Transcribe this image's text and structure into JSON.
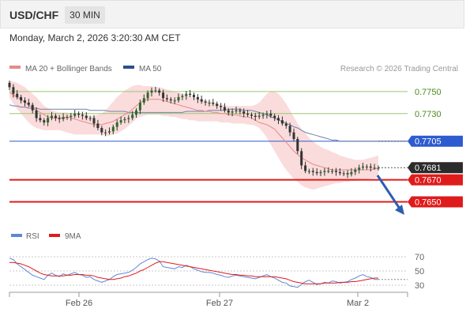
{
  "header": {
    "pair": "USD/CHF",
    "timeframe": "30 MIN"
  },
  "timestamp": "Monday, March 2, 2026 3:20:30 AM CET",
  "legend": {
    "bb_label": "MA 20 + Bollinger Bands",
    "ma50_label": "MA 50",
    "credit": "Research © 2026 Trading Central"
  },
  "rsi_legend": {
    "rsi_label": "RSI",
    "ma9_label": "9MA"
  },
  "colors": {
    "resistance": "#9dc870",
    "resistance_text": "#4a8a1f",
    "pivot": "#2d5bd0",
    "support": "#e01b1b",
    "current": "#2b2b2b",
    "candle": "#2a6a24",
    "bollinger": "#f8d0d0",
    "ma20": "#e68a8a",
    "ma50": "#6f82aa",
    "rsi": "#5f86d8",
    "rsi_ma": "#e01b1b",
    "arrow": "#2a5fae"
  },
  "chart_data": {
    "type": "candlestick",
    "price_axis": {
      "min": 0.7636,
      "max": 0.7765
    },
    "x_ticks": [
      "Feb 26",
      "Feb 27",
      "Mar 2"
    ],
    "levels": [
      {
        "label": "0.7750",
        "value": 0.775,
        "kind": "resistance"
      },
      {
        "label": "0.7730",
        "value": 0.773,
        "kind": "resistance"
      },
      {
        "label": "0.7705",
        "value": 0.7705,
        "kind": "pivot"
      },
      {
        "label": "0.7681",
        "value": 0.7681,
        "kind": "current"
      },
      {
        "label": "0.7670",
        "value": 0.767,
        "kind": "support"
      },
      {
        "label": "0.7650",
        "value": 0.765,
        "kind": "support"
      }
    ],
    "close": [
      0.7754,
      0.7748,
      0.7745,
      0.7742,
      0.774,
      0.7738,
      0.7733,
      0.7726,
      0.7724,
      0.7722,
      0.7726,
      0.7728,
      0.7726,
      0.7725,
      0.7727,
      0.7727,
      0.7728,
      0.773,
      0.7729,
      0.7728,
      0.7726,
      0.7726,
      0.7721,
      0.7717,
      0.7713,
      0.7713,
      0.7714,
      0.7718,
      0.7722,
      0.7724,
      0.7725,
      0.7726,
      0.7729,
      0.7733,
      0.774,
      0.7744,
      0.7749,
      0.7751,
      0.7751,
      0.7749,
      0.7744,
      0.7743,
      0.7742,
      0.7742,
      0.7745,
      0.7746,
      0.7748,
      0.7747,
      0.7745,
      0.7743,
      0.7741,
      0.774,
      0.774,
      0.7739,
      0.7737,
      0.7736,
      0.7733,
      0.7731,
      0.7732,
      0.7733,
      0.7732,
      0.773,
      0.7729,
      0.7728,
      0.7727,
      0.7728,
      0.7729,
      0.773,
      0.7728,
      0.7726,
      0.7724,
      0.7721,
      0.7719,
      0.7713,
      0.7707,
      0.7696,
      0.7683,
      0.7678,
      0.7678,
      0.7677,
      0.7676,
      0.7677,
      0.7678,
      0.7678,
      0.7678,
      0.7677,
      0.7676,
      0.7676,
      0.7675,
      0.7677,
      0.7679,
      0.7681,
      0.7682,
      0.7682,
      0.7681,
      0.7681,
      0.7681
    ],
    "ma20": [
      0.7749,
      0.7747,
      0.7745,
      0.7743,
      0.774,
      0.7738,
      0.7735,
      0.7733,
      0.7731,
      0.7729,
      0.7727,
      0.7726,
      0.7726,
      0.7726,
      0.7726,
      0.7727,
      0.7726,
      0.7725,
      0.7724,
      0.7723,
      0.7722,
      0.7721,
      0.772,
      0.772,
      0.772,
      0.7721,
      0.7722,
      0.7723,
      0.7725,
      0.7727,
      0.7729,
      0.7731,
      0.7734,
      0.7737,
      0.774,
      0.7742,
      0.7743,
      0.7743,
      0.7743,
      0.7743,
      0.7742,
      0.7741,
      0.774,
      0.7739,
      0.7738,
      0.7737,
      0.7736,
      0.7735,
      0.7734,
      0.7733,
      0.7733,
      0.7732,
      0.7732,
      0.7731,
      0.7731,
      0.773,
      0.773,
      0.7729,
      0.7729,
      0.7729,
      0.7728,
      0.7727,
      0.7727,
      0.7726,
      0.7724,
      0.7722,
      0.7721,
      0.772,
      0.7718,
      0.7716,
      0.7712,
      0.7708,
      0.7704,
      0.77,
      0.7696,
      0.7693,
      0.769,
      0.7688,
      0.7686,
      0.7684,
      0.7683,
      0.7682,
      0.7681,
      0.768,
      0.7679,
      0.7679,
      0.7679,
      0.7679,
      0.7679,
      0.7679,
      0.7679,
      0.7679,
      0.7679,
      0.7679,
      0.7679,
      0.768,
      0.768
    ],
    "ma50": [
      0.7738,
      0.7737,
      0.7737,
      0.7736,
      0.7736,
      0.7735,
      0.7735,
      0.7735,
      0.7734,
      0.7734,
      0.7734,
      0.7734,
      0.7734,
      0.7734,
      0.7734,
      0.7734,
      0.7734,
      0.7734,
      0.7734,
      0.7734,
      0.7734,
      0.7733,
      0.7733,
      0.7733,
      0.7733,
      0.7733,
      0.7732,
      0.7732,
      0.7732,
      0.7732,
      0.7732,
      0.7731,
      0.7731,
      0.7731,
      0.7731,
      0.7731,
      0.7731,
      0.7731,
      0.7731,
      0.7731,
      0.7731,
      0.7731,
      0.7731,
      0.7731,
      0.7731,
      0.7731,
      0.7732,
      0.7732,
      0.7732,
      0.7732,
      0.7732,
      0.7732,
      0.7733,
      0.7733,
      0.7733,
      0.7733,
      0.7733,
      0.7734,
      0.7734,
      0.7734,
      0.7734,
      0.7733,
      0.7733,
      0.7733,
      0.7732,
      0.7731,
      0.773,
      0.7729,
      0.7727,
      0.7726,
      0.7724,
      0.7723,
      0.7721,
      0.772,
      0.7718,
      0.7717,
      0.7715,
      0.7713,
      0.7712,
      0.7711,
      0.771,
      0.7709,
      0.7708,
      0.7707,
      0.7706,
      0.7706,
      0.7705,
      0.7705,
      0.7705,
      0.7705,
      0.7705,
      0.7705,
      0.7705,
      0.7705,
      0.7705,
      0.7705,
      0.7705
    ],
    "bb_upper": [
      0.776,
      0.7759,
      0.7758,
      0.7756,
      0.7754,
      0.7751,
      0.7748,
      0.7745,
      0.7741,
      0.7737,
      0.7735,
      0.7733,
      0.7732,
      0.7731,
      0.7731,
      0.7731,
      0.773,
      0.773,
      0.773,
      0.7729,
      0.7729,
      0.7728,
      0.7728,
      0.7729,
      0.773,
      0.7733,
      0.7737,
      0.7741,
      0.7745,
      0.7748,
      0.7751,
      0.7753,
      0.7755,
      0.7756,
      0.7756,
      0.7755,
      0.7755,
      0.7755,
      0.7754,
      0.7754,
      0.7753,
      0.7752,
      0.7751,
      0.775,
      0.7749,
      0.7748,
      0.7747,
      0.7746,
      0.7745,
      0.7744,
      0.7743,
      0.7742,
      0.7741,
      0.774,
      0.7739,
      0.7738,
      0.7738,
      0.7737,
      0.7737,
      0.7737,
      0.7737,
      0.7737,
      0.7737,
      0.7737,
      0.7738,
      0.774,
      0.7744,
      0.7748,
      0.775,
      0.775,
      0.7748,
      0.7744,
      0.7739,
      0.7733,
      0.7727,
      0.7721,
      0.7716,
      0.7712,
      0.7708,
      0.7705,
      0.7702,
      0.77,
      0.7698,
      0.7697,
      0.7695,
      0.7694,
      0.7692,
      0.7691,
      0.769,
      0.7689,
      0.7688,
      0.7688,
      0.7688,
      0.7689,
      0.769,
      0.7691,
      0.7692
    ],
    "bb_lower": [
      0.7745,
      0.7739,
      0.7734,
      0.773,
      0.7726,
      0.7722,
      0.7719,
      0.7717,
      0.7716,
      0.7715,
      0.7715,
      0.7715,
      0.7715,
      0.7715,
      0.7714,
      0.7713,
      0.7712,
      0.7711,
      0.7711,
      0.7711,
      0.7711,
      0.7711,
      0.7711,
      0.7711,
      0.7711,
      0.771,
      0.771,
      0.7711,
      0.7712,
      0.7714,
      0.7716,
      0.7719,
      0.7722,
      0.7725,
      0.7727,
      0.7728,
      0.7729,
      0.7729,
      0.7729,
      0.7729,
      0.7728,
      0.7728,
      0.7727,
      0.7727,
      0.7726,
      0.7725,
      0.7725,
      0.7724,
      0.7724,
      0.7723,
      0.7723,
      0.7723,
      0.7723,
      0.7723,
      0.7723,
      0.7722,
      0.7722,
      0.7722,
      0.7721,
      0.7721,
      0.7721,
      0.7721,
      0.772,
      0.772,
      0.7719,
      0.7717,
      0.7713,
      0.7708,
      0.7702,
      0.7696,
      0.769,
      0.7684,
      0.7679,
      0.7675,
      0.7671,
      0.7668,
      0.7665,
      0.7663,
      0.7662,
      0.7661,
      0.7662,
      0.7663,
      0.7664,
      0.7665,
      0.7666,
      0.7667,
      0.7667,
      0.7668,
      0.7668,
      0.7669,
      0.7669,
      0.767,
      0.767,
      0.7671,
      0.7671,
      0.7672,
      0.7672
    ],
    "rsi_axis": {
      "min": 20,
      "max": 80,
      "ticks": [
        70,
        50,
        30
      ]
    },
    "rsi": [
      68,
      66,
      60,
      56,
      52,
      48,
      44,
      42,
      40,
      38,
      44,
      47,
      44,
      42,
      46,
      44,
      46,
      48,
      45,
      44,
      41,
      42,
      38,
      36,
      34,
      36,
      38,
      42,
      45,
      46,
      47,
      48,
      51,
      55,
      60,
      63,
      66,
      68,
      67,
      64,
      56,
      55,
      54,
      53,
      56,
      55,
      58,
      56,
      53,
      51,
      49,
      48,
      48,
      47,
      45,
      44,
      42,
      41,
      43,
      44,
      43,
      42,
      41,
      40,
      39,
      41,
      43,
      45,
      42,
      40,
      37,
      34,
      33,
      29,
      28,
      27,
      31,
      35,
      37,
      34,
      31,
      32,
      34,
      33,
      36,
      35,
      33,
      34,
      35,
      38,
      40,
      43,
      45,
      42,
      41,
      38,
      38
    ],
    "rsi_ma": [
      62,
      62,
      61,
      60,
      58,
      56,
      53,
      50,
      47,
      45,
      44,
      43,
      43,
      43,
      43,
      44,
      44,
      45,
      45,
      45,
      44,
      44,
      43,
      41,
      40,
      39,
      38,
      38,
      39,
      40,
      42,
      43,
      45,
      47,
      50,
      52,
      55,
      58,
      61,
      63,
      63,
      62,
      61,
      60,
      59,
      58,
      57,
      56,
      55,
      54,
      53,
      52,
      51,
      50,
      49,
      48,
      47,
      46,
      45,
      45,
      44,
      44,
      43,
      43,
      42,
      42,
      42,
      42,
      42,
      42,
      41,
      40,
      39,
      37,
      35,
      34,
      33,
      32,
      32,
      32,
      32,
      32,
      33,
      33,
      33,
      33,
      34,
      34,
      34,
      35,
      35,
      36,
      37,
      38,
      39,
      40,
      40
    ]
  }
}
